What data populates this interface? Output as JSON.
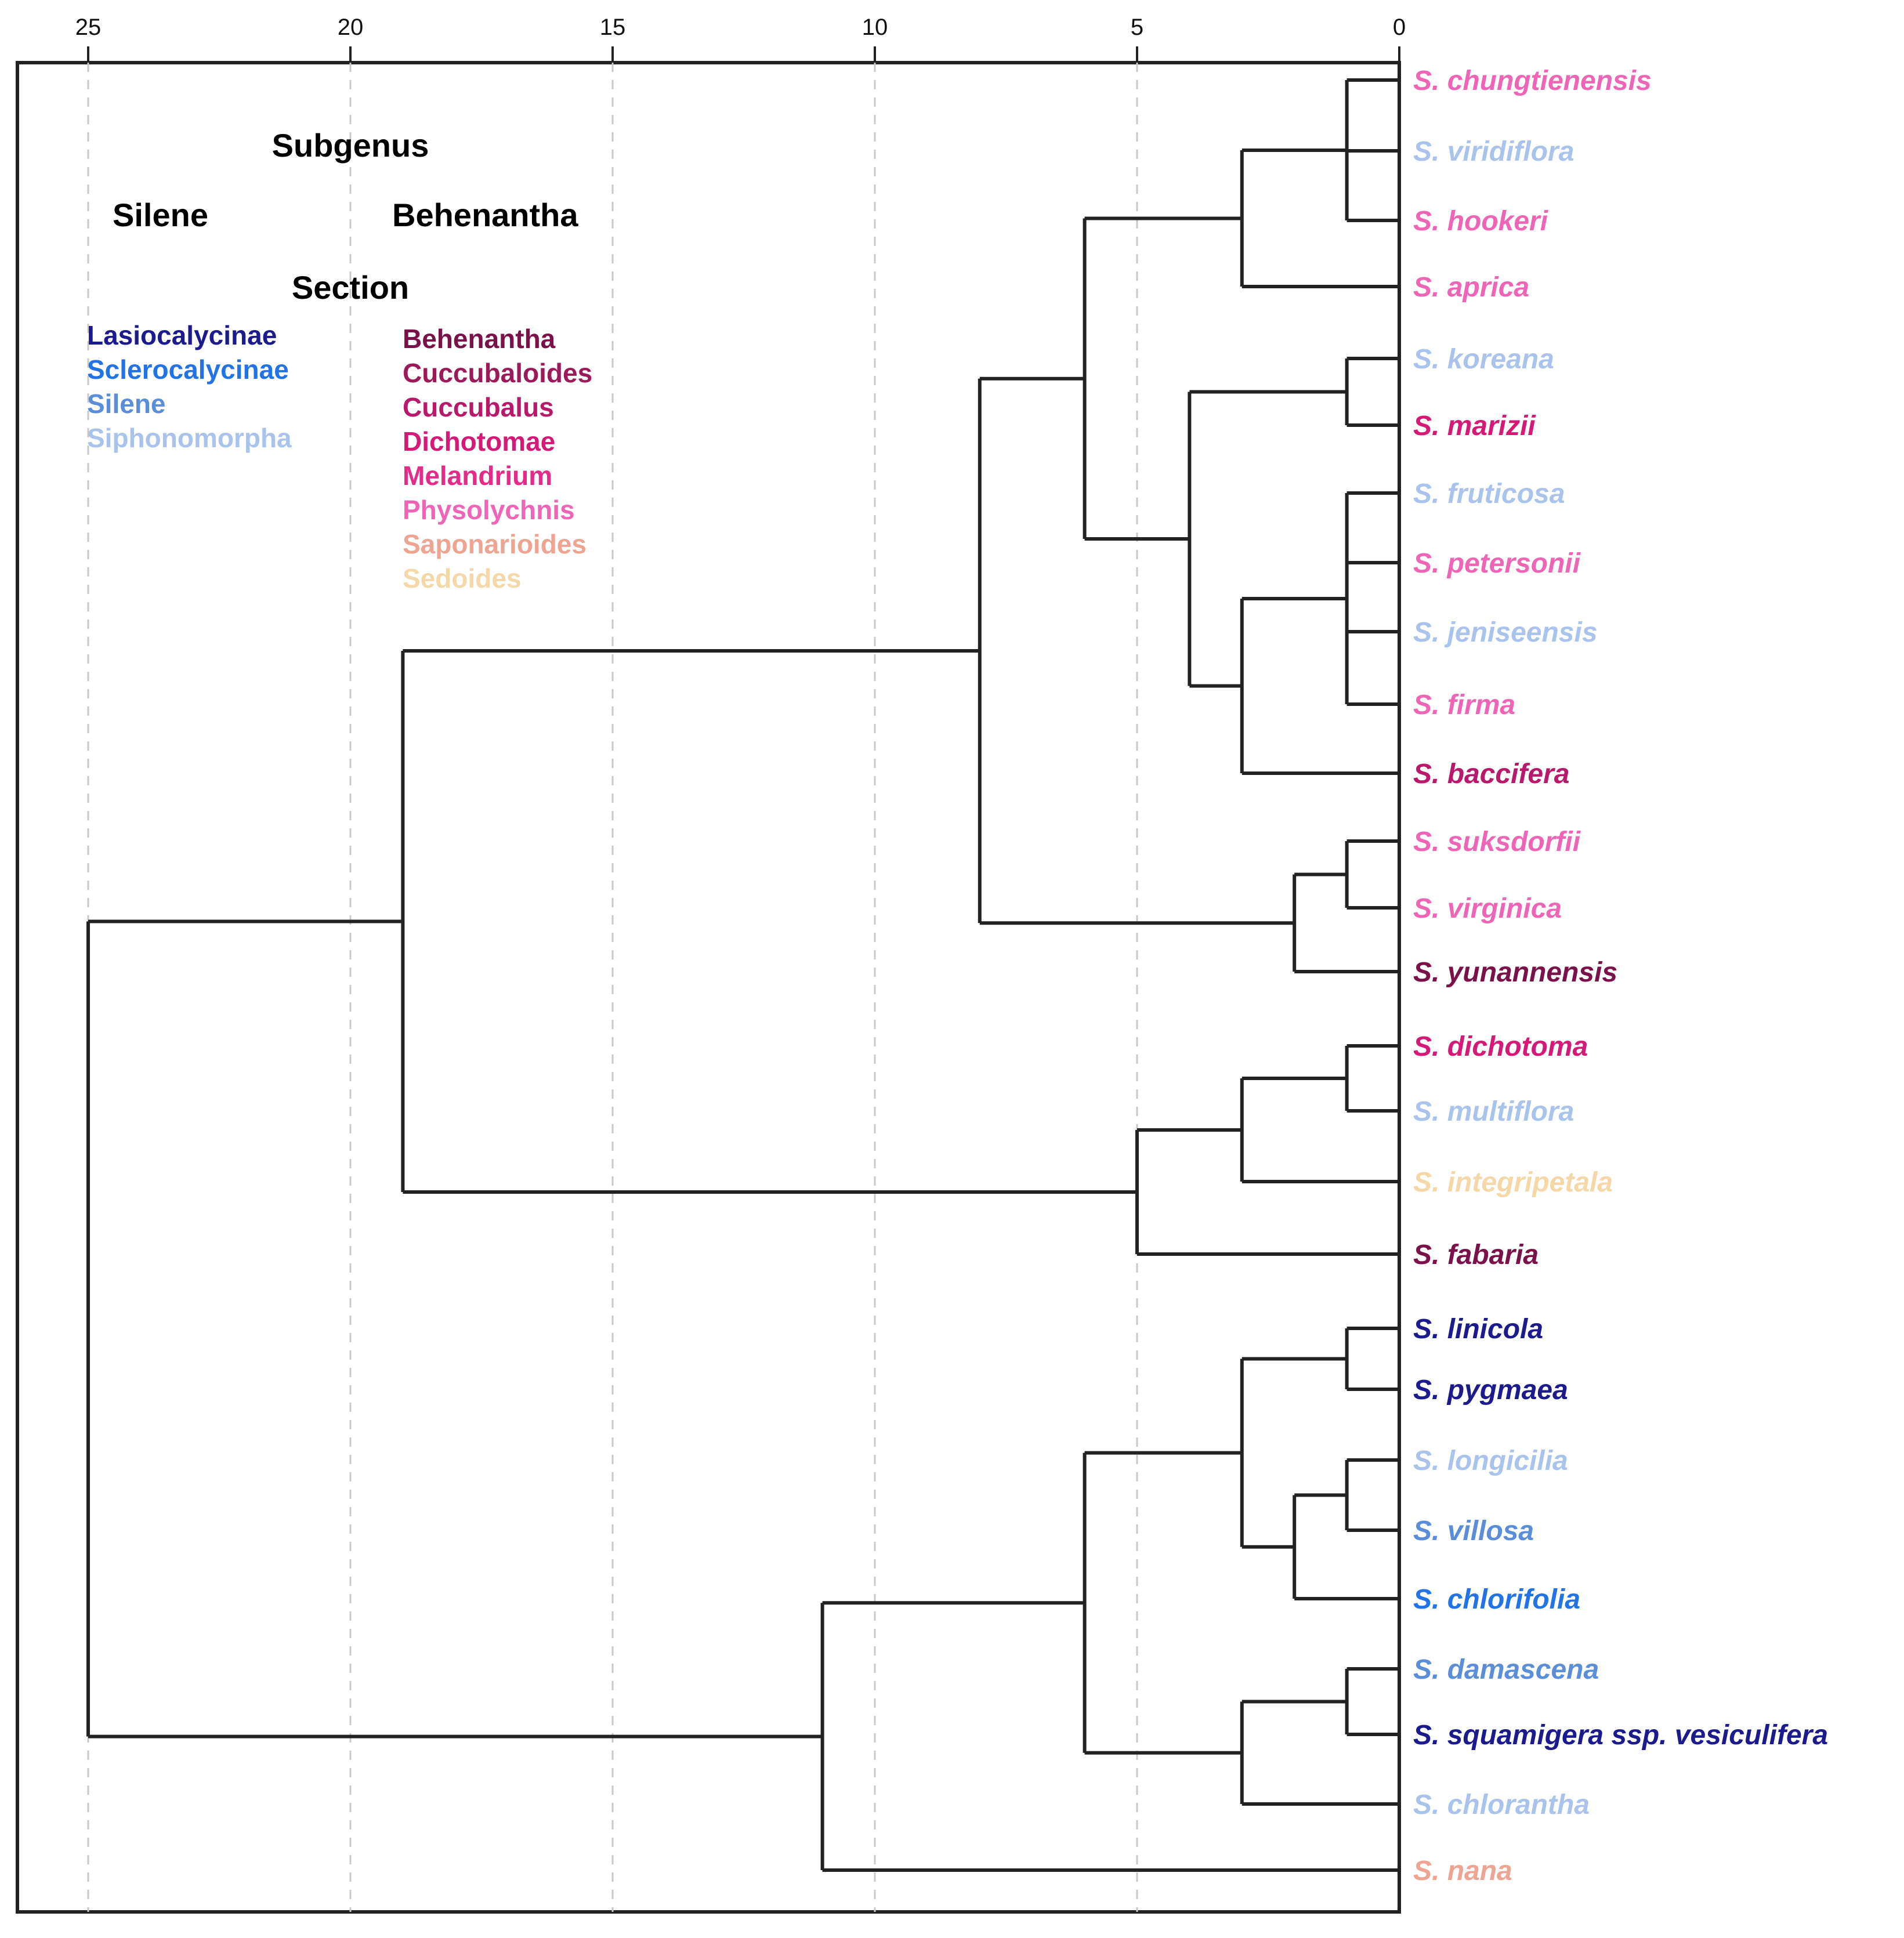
{
  "chart_data": {
    "type": "dendrogram",
    "axis": {
      "ticks": [
        {
          "value": 25,
          "label": "25"
        },
        {
          "value": 20,
          "label": "20"
        },
        {
          "value": 15,
          "label": "15"
        },
        {
          "value": 10,
          "label": "10"
        },
        {
          "value": 5,
          "label": "5"
        },
        {
          "value": 0,
          "label": "0"
        }
      ],
      "range": [
        26.3,
        0
      ],
      "grid": true
    },
    "legend": {
      "subgenus_title": "Subgenus",
      "section_title": "Section",
      "subgenera": [
        {
          "name": "Silene",
          "color": "#1f6fe0"
        },
        {
          "name": "Behenantha",
          "color": "#e0197a"
        }
      ],
      "sections_silene": [
        {
          "name": "Lasiocalycinae",
          "color": "#1c1b8e"
        },
        {
          "name": "Sclerocalycinae",
          "color": "#2274e6"
        },
        {
          "name": "Silene",
          "color": "#5b8ed8"
        },
        {
          "name": "Siphonomorpha",
          "color": "#a9c3ec"
        }
      ],
      "sections_behenantha": [
        {
          "name": "Behenantha",
          "color": "#7a1148"
        },
        {
          "name": "Cuccubaloides",
          "color": "#9c1a5a"
        },
        {
          "name": "Cuccubalus",
          "color": "#b8196a"
        },
        {
          "name": "Dichotomae",
          "color": "#d41a76"
        },
        {
          "name": "Melandrium",
          "color": "#e52a8a"
        },
        {
          "name": "Physolychnis",
          "color": "#ee65b6"
        },
        {
          "name": "Saponarioides",
          "color": "#eda592"
        },
        {
          "name": "Sedoides",
          "color": "#f5d7a8"
        }
      ]
    },
    "leaves": [
      {
        "name": "S. chungtienensis",
        "color": "#ee65b6"
      },
      {
        "name": "S. viridiflora",
        "color": "#a9c3ec"
      },
      {
        "name": "S. hookeri",
        "color": "#ee65b6"
      },
      {
        "name": "S. aprica",
        "color": "#ee65b6"
      },
      {
        "name": "S. koreana",
        "color": "#a9c3ec"
      },
      {
        "name": "S. marizii",
        "color": "#d41a76"
      },
      {
        "name": "S. fruticosa",
        "color": "#a9c3ec"
      },
      {
        "name": "S. petersonii",
        "color": "#ee65b6"
      },
      {
        "name": "S. jeniseensis",
        "color": "#a9c3ec"
      },
      {
        "name": "S. firma",
        "color": "#ee65b6"
      },
      {
        "name": "S. baccifera",
        "color": "#b8196a"
      },
      {
        "name": "S. suksdorfii",
        "color": "#ee65b6"
      },
      {
        "name": "S. virginica",
        "color": "#ee65b6"
      },
      {
        "name": "S. yunannensis",
        "color": "#7a1148"
      },
      {
        "name": "S. dichotoma",
        "color": "#d41a76"
      },
      {
        "name": "S. multiflora",
        "color": "#a9c3ec"
      },
      {
        "name": "S. integripetala",
        "color": "#f5d7a8"
      },
      {
        "name": "S. fabaria",
        "color": "#7a1148"
      },
      {
        "name": "S. linicola",
        "color": "#1c1b8e"
      },
      {
        "name": "S. pygmaea",
        "color": "#1c1b8e"
      },
      {
        "name": "S. longicilia",
        "color": "#a9c3ec"
      },
      {
        "name": "S. villosa",
        "color": "#5b8ed8"
      },
      {
        "name": "S. chlorifolia",
        "color": "#2274e6"
      },
      {
        "name": "S. damascena",
        "color": "#5b8ed8"
      },
      {
        "name": "S. squamigera ssp.  vesiculifera",
        "color": "#1c1b8e"
      },
      {
        "name": "S. chlorantha",
        "color": "#a9c3ec"
      },
      {
        "name": "S. nana",
        "color": "#eda592"
      }
    ],
    "merges": [
      {
        "children": [
          "L:S. chungtienensis",
          "L:S. viridiflora",
          "L:S. hookeri"
        ],
        "height": 1,
        "name": "A1"
      },
      {
        "children": [
          "N:A1",
          "L:S. aprica"
        ],
        "height": 3,
        "name": "A2"
      },
      {
        "children": [
          "L:S. koreana",
          "L:S. marizii"
        ],
        "height": 1,
        "name": "B1"
      },
      {
        "children": [
          "L:S. fruticosa",
          "L:S. petersonii",
          "L:S. jeniseensis",
          "L:S. firma"
        ],
        "height": 1,
        "name": "C1"
      },
      {
        "children": [
          "N:C1",
          "L:S. baccifera"
        ],
        "height": 3,
        "name": "C2"
      },
      {
        "children": [
          "N:B1",
          "N:C2"
        ],
        "height": 4,
        "name": "BC"
      },
      {
        "children": [
          "N:A2",
          "N:BC"
        ],
        "height": 6,
        "name": "ABC"
      },
      {
        "children": [
          "L:S. suksdorfii",
          "L:S. virginica"
        ],
        "height": 1,
        "name": "D1"
      },
      {
        "children": [
          "N:D1",
          "L:S. yunannensis"
        ],
        "height": 2,
        "name": "D2"
      },
      {
        "children": [
          "N:ABC",
          "N:D2"
        ],
        "height": 8,
        "name": "E"
      },
      {
        "children": [
          "L:S. dichotoma",
          "L:S. multiflora"
        ],
        "height": 1,
        "name": "F1"
      },
      {
        "children": [
          "N:F1",
          "L:S. integripetala"
        ],
        "height": 3,
        "name": "F2"
      },
      {
        "children": [
          "N:F2",
          "L:S. fabaria"
        ],
        "height": 5,
        "name": "F3"
      },
      {
        "children": [
          "N:E",
          "N:F3"
        ],
        "height": 19,
        "name": "G"
      },
      {
        "children": [
          "L:S. linicola",
          "L:S. pygmaea"
        ],
        "height": 1,
        "name": "H1"
      },
      {
        "children": [
          "L:S. longicilia",
          "L:S. villosa"
        ],
        "height": 1,
        "name": "H2"
      },
      {
        "children": [
          "N:H2",
          "L:S. chlorifolia"
        ],
        "height": 2,
        "name": "H3"
      },
      {
        "children": [
          "N:H1",
          "N:H3"
        ],
        "height": 3,
        "name": "H4"
      },
      {
        "children": [
          "L:S. damascena",
          "L:S. squamigera ssp.  vesiculifera"
        ],
        "height": 1,
        "name": "I1"
      },
      {
        "children": [
          "N:I1",
          "L:S. chlorantha"
        ],
        "height": 3,
        "name": "I2"
      },
      {
        "children": [
          "N:H4",
          "N:I2"
        ],
        "height": 6,
        "name": "J"
      },
      {
        "children": [
          "N:J",
          "L:S. nana"
        ],
        "height": 11,
        "name": "K"
      },
      {
        "children": [
          "N:G",
          "N:K"
        ],
        "height": 25,
        "name": "ROOT"
      }
    ]
  }
}
